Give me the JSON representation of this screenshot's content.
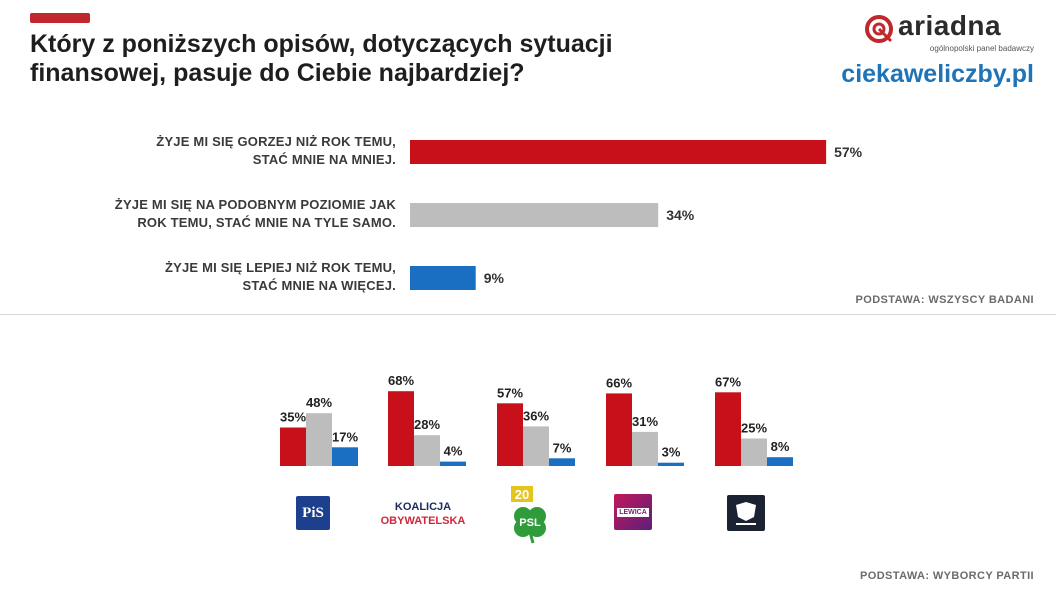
{
  "title": "Który z poniższych opisów, dotyczących sytuacji finansowej, pasuje do Ciebie najbardziej?",
  "brand": {
    "name": "ariadna",
    "tagline": "ogólnopolski panel badawczy",
    "site": "ciekaweliczby.pl"
  },
  "colors": {
    "red": "#c8101a",
    "gray": "#bdbdbd",
    "blue": "#1b6fc2",
    "accent": "#c0282d"
  },
  "basis_all": "PODSTAWA: WSZYSCY BADANI",
  "basis_voters": "PODSTAWA: WYBORCY PARTII",
  "party_logos": {
    "pis": "PiS",
    "ko_line1": "KOALICJA",
    "ko_line2": "OBYWATELSKA",
    "psl": "PSL",
    "psl_badge": "20",
    "lewica": "LEWICA"
  },
  "chart_data": [
    {
      "type": "bar",
      "orientation": "horizontal",
      "categories": [
        "ŻYJE MI SIĘ GORZEJ NIŻ ROK TEMU, STAĆ MNIE NA MNIEJ.",
        "ŻYJE MI SIĘ NA PODOBNYM POZIOMIE JAK ROK TEMU, STAĆ MNIE NA TYLE SAMO.",
        "ŻYJE MI SIĘ LEPIEJ NIŻ ROK TEMU, STAĆ MNIE NA WIĘCEJ."
      ],
      "category_lines": [
        [
          "ŻYJE MI SIĘ GORZEJ NIŻ ROK TEMU,",
          "STAĆ MNIE NA MNIEJ."
        ],
        [
          "ŻYJE MI SIĘ NA PODOBNYM POZIOMIE JAK",
          "ROK TEMU, STAĆ MNIE NA TYLE SAMO."
        ],
        [
          "ŻYJE MI SIĘ LEPIEJ NIŻ ROK TEMU,",
          "STAĆ MNIE NA WIĘCEJ."
        ]
      ],
      "values": [
        57,
        34,
        9
      ],
      "labels": [
        "57%",
        "34%",
        "9%"
      ],
      "colors": [
        "#c8101a",
        "#bdbdbd",
        "#1b6fc2"
      ],
      "unit": "%",
      "xlim": [
        0,
        100
      ],
      "grid": false
    },
    {
      "type": "bar",
      "orientation": "vertical-grouped",
      "groups": [
        "PiS",
        "Koalicja Obywatelska",
        "PSL",
        "Lewica",
        "Konfederacja"
      ],
      "series_colors": [
        "#c8101a",
        "#bdbdbd",
        "#1b6fc2"
      ],
      "values": [
        [
          35,
          48,
          17
        ],
        [
          68,
          28,
          4
        ],
        [
          57,
          36,
          7
        ],
        [
          66,
          31,
          3
        ],
        [
          67,
          25,
          8
        ]
      ],
      "labels": [
        [
          "35%",
          "48%",
          "17%"
        ],
        [
          "68%",
          "28%",
          "4%"
        ],
        [
          "57%",
          "36%",
          "7%"
        ],
        [
          "66%",
          "31%",
          "3%"
        ],
        [
          "67%",
          "25%",
          "8%"
        ]
      ],
      "unit": "%",
      "ylim": [
        0,
        100
      ],
      "grid": false
    }
  ]
}
